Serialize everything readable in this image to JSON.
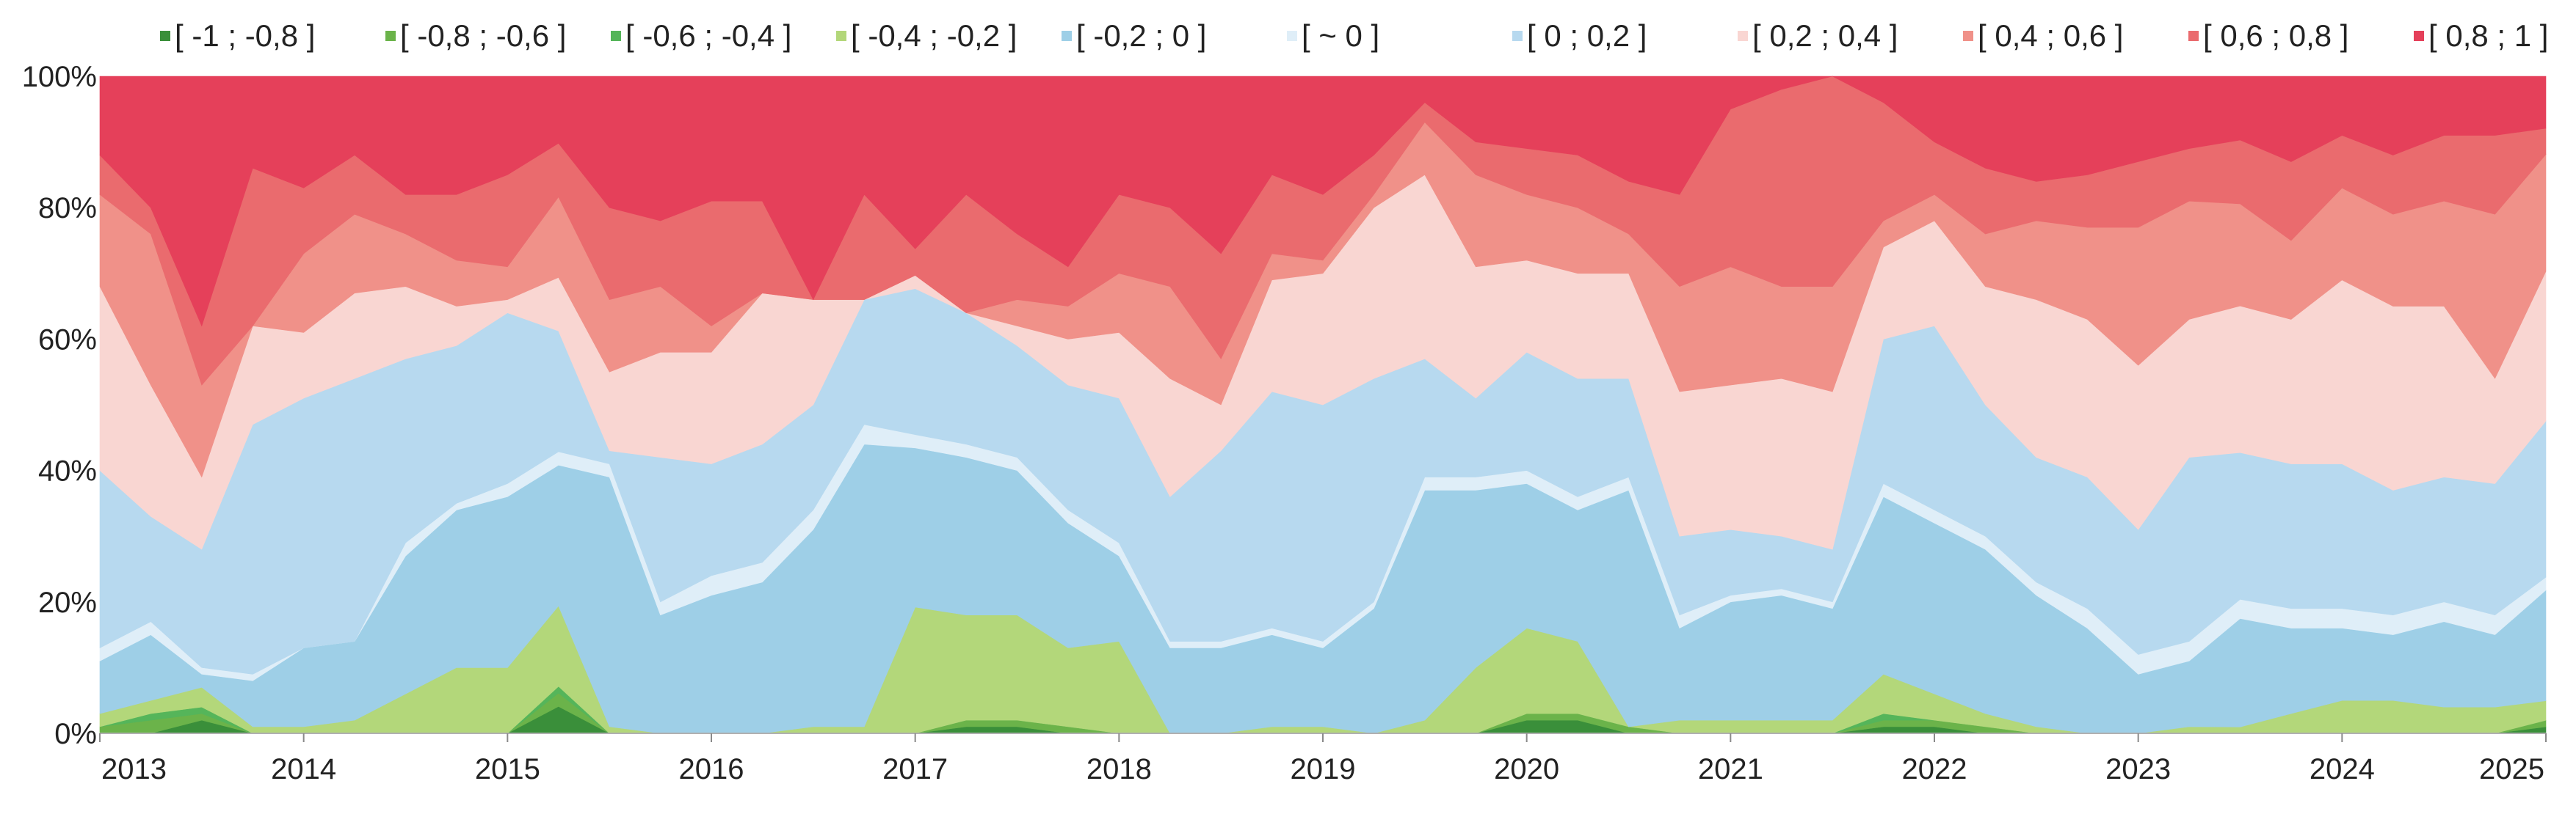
{
  "chart_data": {
    "type": "area",
    "stacked": true,
    "normalized": true,
    "title": "",
    "xlabel": "",
    "ylabel": "",
    "xlim": [
      2013,
      2025
    ],
    "ylim": [
      0,
      100
    ],
    "grid": false,
    "legend_position": "top",
    "x_ticks": [
      "2013",
      "2014",
      "2015",
      "2016",
      "2017",
      "2018",
      "2019",
      "2020",
      "2021",
      "2022",
      "2023",
      "2024",
      "2025"
    ],
    "y_ticks": [
      "0%",
      "20%",
      "40%",
      "60%",
      "80%",
      "100%"
    ],
    "x": [
      2013.0,
      2013.25,
      2013.5,
      2013.75,
      2014.0,
      2014.25,
      2014.5,
      2014.75,
      2015.0,
      2015.25,
      2015.5,
      2015.75,
      2016.0,
      2016.25,
      2016.5,
      2016.75,
      2017.0,
      2017.25,
      2017.5,
      2017.75,
      2018.0,
      2018.25,
      2018.5,
      2018.75,
      2019.0,
      2019.25,
      2019.5,
      2019.75,
      2020.0,
      2020.25,
      2020.5,
      2020.75,
      2021.0,
      2021.25,
      2021.5,
      2021.75,
      2022.0,
      2022.25,
      2022.5,
      2022.75,
      2023.0,
      2023.25,
      2023.5,
      2023.75,
      2024.0,
      2024.25,
      2024.5,
      2024.75,
      2025.0
    ],
    "series": [
      {
        "name": "[ -1 ; -0,8 ]",
        "color": "#3a8f3a",
        "values": [
          0,
          0,
          2,
          0,
          0,
          0,
          0,
          0,
          0,
          4,
          0,
          0,
          0,
          0,
          0,
          0,
          0,
          1,
          1,
          0,
          0,
          0,
          0,
          0,
          0,
          0,
          0,
          0,
          2,
          2,
          0,
          0,
          0,
          0,
          0,
          1,
          1,
          0,
          0,
          0,
          0,
          0,
          0,
          0,
          0,
          0,
          0,
          0,
          1
        ]
      },
      {
        "name": "[ -0,8 ; -0,6 ]",
        "color": "#6bb34a",
        "values": [
          1,
          2,
          1,
          0,
          0,
          0,
          0,
          0,
          0,
          2,
          0,
          0,
          0,
          0,
          0,
          0,
          0,
          1,
          1,
          1,
          0,
          0,
          0,
          0,
          0,
          0,
          0,
          0,
          1,
          1,
          1,
          0,
          0,
          0,
          0,
          1,
          1,
          1,
          0,
          0,
          0,
          0,
          0,
          0,
          0,
          0,
          0,
          0,
          1
        ]
      },
      {
        "name": "[ -0,6 ; -0,4 ]",
        "color": "#55b55a",
        "values": [
          0,
          1,
          1,
          0,
          0,
          0,
          0,
          0,
          0,
          1,
          0,
          0,
          0,
          0,
          0,
          0,
          0,
          0,
          0,
          0,
          0,
          0,
          0,
          0,
          0,
          0,
          0,
          0,
          0,
          0,
          0,
          0,
          0,
          0,
          0,
          1,
          0,
          0,
          0,
          0,
          0,
          0,
          0,
          0,
          0,
          0,
          0,
          0,
          0
        ]
      },
      {
        "name": "[ -0,4 ; -0,2 ]",
        "color": "#b3d77a",
        "values": [
          2,
          2,
          3,
          1,
          1,
          2,
          6,
          10,
          10,
          12,
          1,
          0,
          0,
          0,
          1,
          1,
          19,
          16,
          16,
          12,
          14,
          0,
          0,
          1,
          1,
          0,
          2,
          10,
          13,
          11,
          0,
          2,
          2,
          2,
          2,
          6,
          4,
          2,
          1,
          0,
          0,
          1,
          1,
          3,
          5,
          5,
          4,
          4,
          3
        ]
      },
      {
        "name": "[ -0,2 ; 0 ]",
        "color": "#9ecfe7",
        "values": [
          8,
          10,
          2,
          7,
          12,
          12,
          21,
          24,
          26,
          21,
          38,
          18,
          21,
          23,
          30,
          43,
          24,
          24,
          22,
          19,
          13,
          13,
          13,
          14,
          12,
          19,
          35,
          27,
          22,
          20,
          36,
          14,
          18,
          19,
          17,
          27,
          26,
          25,
          20,
          16,
          9,
          10,
          17,
          13,
          11,
          10,
          13,
          11,
          17
        ]
      },
      {
        "name": "[ ~ 0 ]",
        "color": "#dfeef8",
        "values": [
          2,
          2,
          1,
          1,
          0,
          0,
          2,
          1,
          2,
          2,
          2,
          2,
          3,
          3,
          3,
          3,
          2,
          2,
          2,
          2,
          2,
          1,
          1,
          1,
          1,
          1,
          2,
          2,
          2,
          2,
          2,
          2,
          1,
          1,
          1,
          2,
          2,
          2,
          2,
          3,
          3,
          3,
          3,
          3,
          3,
          3,
          3,
          3,
          2
        ]
      },
      {
        "name": "[ 0 ; 0,2 ]",
        "color": "#b7d9ef",
        "values": [
          27,
          16,
          18,
          38,
          38,
          40,
          28,
          24,
          26,
          18,
          2,
          22,
          17,
          18,
          16,
          19,
          22,
          20,
          17,
          19,
          22,
          22,
          29,
          36,
          36,
          34,
          18,
          12,
          18,
          18,
          15,
          12,
          10,
          8,
          8,
          22,
          28,
          20,
          19,
          20,
          19,
          28,
          23,
          22,
          22,
          19,
          19,
          20,
          24
        ]
      },
      {
        "name": "[ 0,2 ; 0,4 ]",
        "color": "#f9d6d2",
        "values": [
          28,
          20,
          11,
          15,
          10,
          13,
          11,
          6,
          2,
          8,
          12,
          16,
          17,
          23,
          16,
          0,
          2,
          0,
          3,
          7,
          10,
          18,
          7,
          17,
          20,
          26,
          28,
          20,
          14,
          16,
          16,
          22,
          22,
          24,
          24,
          14,
          16,
          18,
          24,
          24,
          25,
          21,
          23,
          22,
          28,
          28,
          26,
          16,
          23
        ]
      },
      {
        "name": "[ 0,4 ; 0,6 ]",
        "color": "#f09189",
        "values": [
          14,
          23,
          14,
          0,
          12,
          12,
          8,
          7,
          5,
          12,
          11,
          10,
          4,
          0,
          0,
          0,
          0,
          0,
          4,
          5,
          9,
          14,
          7,
          4,
          2,
          2,
          8,
          14,
          10,
          10,
          6,
          16,
          18,
          14,
          16,
          4,
          4,
          8,
          12,
          14,
          21,
          18,
          16,
          12,
          14,
          14,
          16,
          25,
          18
        ]
      },
      {
        "name": "[ 0,6 ; 0,8 ]",
        "color": "#ea6b6e",
        "values": [
          6,
          4,
          9,
          24,
          10,
          9,
          6,
          10,
          14,
          8,
          14,
          10,
          19,
          14,
          0,
          16,
          4,
          18,
          10,
          6,
          12,
          12,
          16,
          12,
          10,
          6,
          3,
          5,
          7,
          8,
          8,
          14,
          24,
          30,
          32,
          18,
          8,
          10,
          6,
          8,
          10,
          8,
          10,
          12,
          8,
          9,
          10,
          12,
          4
        ]
      },
      {
        "name": "[ 0,8 ; 1 ]",
        "color": "#e5405a",
        "values": [
          12,
          20,
          38,
          14,
          17,
          12,
          18,
          18,
          15,
          10,
          20,
          22,
          19,
          19,
          34,
          18,
          26,
          18,
          24,
          29,
          18,
          20,
          27,
          15,
          18,
          12,
          4,
          10,
          11,
          12,
          16,
          18,
          5,
          2,
          0,
          4,
          10,
          14,
          16,
          15,
          13,
          11,
          10,
          13,
          9,
          12,
          9,
          9,
          8
        ]
      }
    ]
  }
}
